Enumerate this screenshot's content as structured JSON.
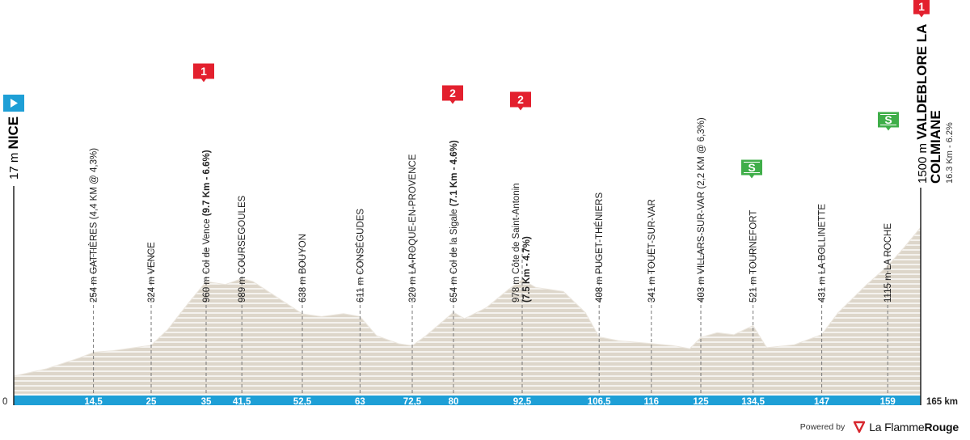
{
  "chart_data": {
    "type": "area",
    "title": "",
    "xlabel": "",
    "ylabel": "",
    "x_start_label": "0",
    "x_end_label": "165 km",
    "xlim": [
      0,
      165
    ],
    "ylim": [
      0,
      1550
    ],
    "profile": [
      [
        0,
        17
      ],
      [
        6,
        90
      ],
      [
        12,
        200
      ],
      [
        14.5,
        254
      ],
      [
        18,
        270
      ],
      [
        25,
        324
      ],
      [
        28,
        480
      ],
      [
        32,
        760
      ],
      [
        35,
        960
      ],
      [
        38.5,
        930
      ],
      [
        41.5,
        989
      ],
      [
        43.5,
        960
      ],
      [
        48,
        800
      ],
      [
        52.5,
        638
      ],
      [
        56,
        610
      ],
      [
        60,
        640
      ],
      [
        63,
        611
      ],
      [
        66,
        420
      ],
      [
        70,
        340
      ],
      [
        72.5,
        320
      ],
      [
        75,
        420
      ],
      [
        78,
        560
      ],
      [
        80,
        654
      ],
      [
        82,
        590
      ],
      [
        86,
        700
      ],
      [
        90,
        880
      ],
      [
        92.5,
        978
      ],
      [
        95,
        900
      ],
      [
        100,
        860
      ],
      [
        104,
        650
      ],
      [
        106.5,
        408
      ],
      [
        110,
        370
      ],
      [
        116,
        341
      ],
      [
        120,
        320
      ],
      [
        123,
        290
      ],
      [
        125,
        403
      ],
      [
        128,
        450
      ],
      [
        131,
        430
      ],
      [
        134.5,
        521
      ],
      [
        137,
        300
      ],
      [
        142,
        330
      ],
      [
        147,
        431
      ],
      [
        150,
        650
      ],
      [
        155,
        920
      ],
      [
        159,
        1115
      ],
      [
        162,
        1300
      ],
      [
        165,
        1500
      ]
    ],
    "waypoints": [
      {
        "km": 14.5,
        "km_label": "14,5",
        "text": "254 m GATTIÈRES (4,4 KM @ 4,3%)",
        "bold": "",
        "line2": ""
      },
      {
        "km": 25,
        "km_label": "25",
        "text": "324 m VENCE",
        "bold": "",
        "line2": ""
      },
      {
        "km": 35,
        "km_label": "35",
        "text": "960 m Col de Vence ",
        "bold": "(9.7 Km - 6.6%)",
        "line2": ""
      },
      {
        "km": 41.5,
        "km_label": "41,5",
        "text": "989 m COURSEGOULES",
        "bold": "",
        "line2": ""
      },
      {
        "km": 52.5,
        "km_label": "52,5",
        "text": "638 m BOUYON",
        "bold": "",
        "line2": ""
      },
      {
        "km": 63,
        "km_label": "63",
        "text": "611 m CONSÉGUDES",
        "bold": "",
        "line2": ""
      },
      {
        "km": 72.5,
        "km_label": "72,5",
        "text": "320 m LA-ROQUE-EN-PROVENCE",
        "bold": "",
        "line2": ""
      },
      {
        "km": 80,
        "km_label": "80",
        "text": "654 m Col de la Sigale ",
        "bold": "(7.1 Km - 4.6%)",
        "line2": ""
      },
      {
        "km": 92.5,
        "km_label": "92,5",
        "text": "978 m Côte de Saint-Antonin",
        "bold": "",
        "line2": "(7.5 Km - 4.7%)"
      },
      {
        "km": 106.5,
        "km_label": "106,5",
        "text": "408 m PUGET-THÉNIERS",
        "bold": "",
        "line2": ""
      },
      {
        "km": 116,
        "km_label": "116",
        "text": "341 m TOUËT-SUR-VAR",
        "bold": "",
        "line2": ""
      },
      {
        "km": 125,
        "km_label": "125",
        "text": "403 m VILLARS-SUR-VAR (2,2 KM @ 6,3%)",
        "bold": "",
        "line2": ""
      },
      {
        "km": 134.5,
        "km_label": "134,5",
        "text": "521 m TOURNEFORT",
        "bold": "",
        "line2": ""
      },
      {
        "km": 147,
        "km_label": "147",
        "text": "431 m LA BOLLINETTE",
        "bold": "",
        "line2": ""
      },
      {
        "km": 159,
        "km_label": "159",
        "text": "1115 m LA ROCHE",
        "bold": "",
        "line2": ""
      }
    ],
    "start": {
      "altitude": "17 m",
      "name": "NICE"
    },
    "finish": {
      "altitude": "1500 m",
      "name_line1": "VALDEBLORE LA",
      "name_line2": "COLMIANE",
      "detail": "16.3 Km - 6.2%"
    },
    "badges": [
      {
        "km": 35,
        "label": "1",
        "kind": "kom"
      },
      {
        "km": 80,
        "label": "2",
        "kind": "kom"
      },
      {
        "km": 92.5,
        "label": "2",
        "kind": "kom"
      },
      {
        "km": 134.5,
        "label": "S",
        "kind": "sprint"
      },
      {
        "km": 159,
        "label": "S",
        "kind": "sprint"
      },
      {
        "km": 165,
        "label": "1",
        "kind": "kom"
      }
    ],
    "colors": {
      "profile_fill": "#ddd6ca",
      "profile_edge": "#ece7df",
      "stripe": "#ffffff",
      "baseline": "#1e9fd6",
      "kom": "#e3202e",
      "sprint": "#3fae49",
      "start_flag": "#1e9fd6",
      "dashes": "#777777"
    }
  },
  "footer": {
    "powered": "Powered by",
    "brand_regular": "La Flamme",
    "brand_bold": "Rouge"
  }
}
